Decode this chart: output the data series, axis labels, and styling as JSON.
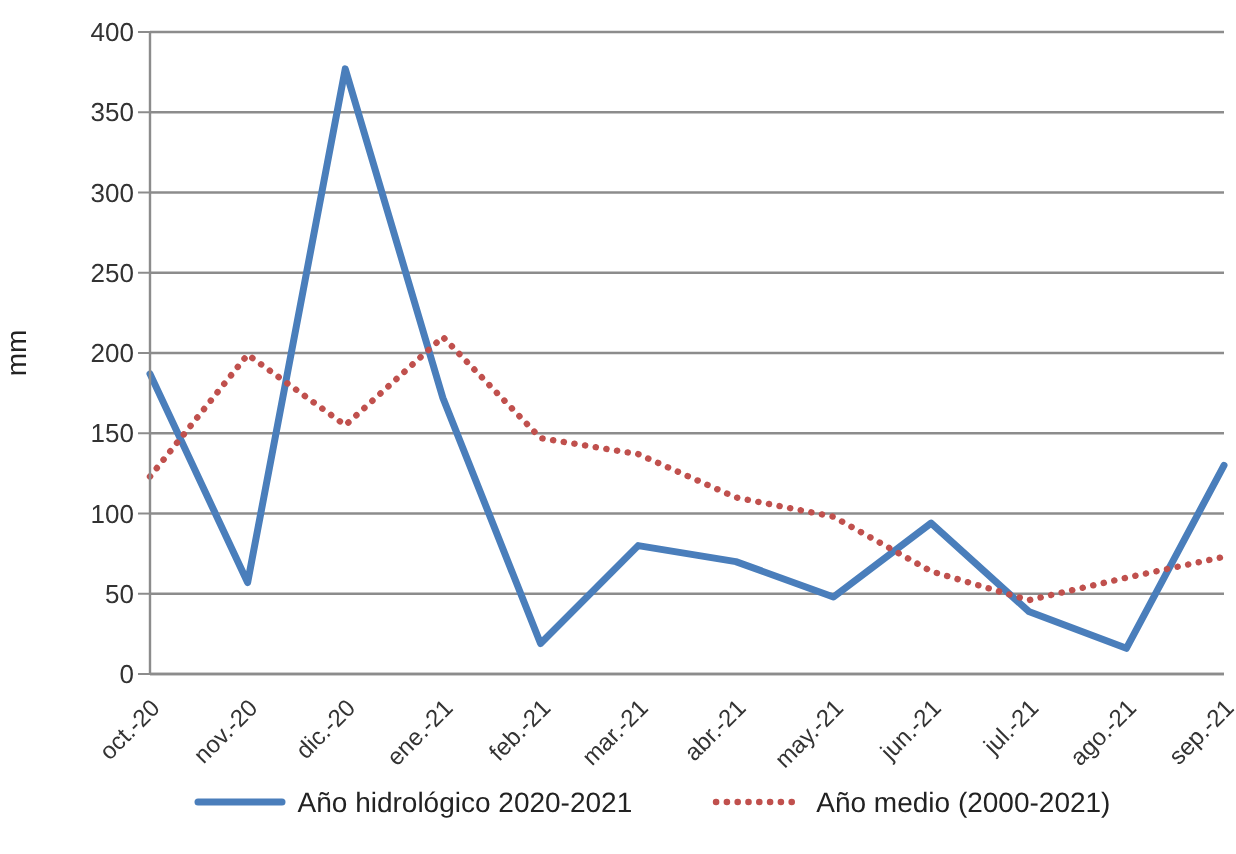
{
  "chart_data": {
    "type": "line",
    "ylabel": "mm",
    "categories": [
      "oct.-20",
      "nov.-20",
      "dic.-20",
      "ene.-21",
      "feb.-21",
      "mar.-21",
      "abr.-21",
      "may.-21",
      "jun.-21",
      "jul.-21",
      "ago.-21",
      "sep.-21"
    ],
    "series": [
      {
        "name": "Año hidrológico 2020-2021",
        "color": "#4a7ebb",
        "line_style": "solid",
        "values": [
          187,
          57,
          377,
          172,
          19,
          80,
          70,
          48,
          94,
          39,
          16,
          130
        ]
      },
      {
        "name": "Año medio (2000-2021)",
        "color": "#c0504d",
        "line_style": "dotted",
        "values": [
          123,
          199,
          155,
          210,
          147,
          137,
          110,
          98,
          64,
          46,
          60,
          73
        ]
      }
    ],
    "ylim": [
      0,
      400
    ],
    "yticks": [
      0,
      50,
      100,
      150,
      200,
      250,
      300,
      350,
      400
    ],
    "grid": "y",
    "legend": "bottom",
    "marker": "none"
  }
}
